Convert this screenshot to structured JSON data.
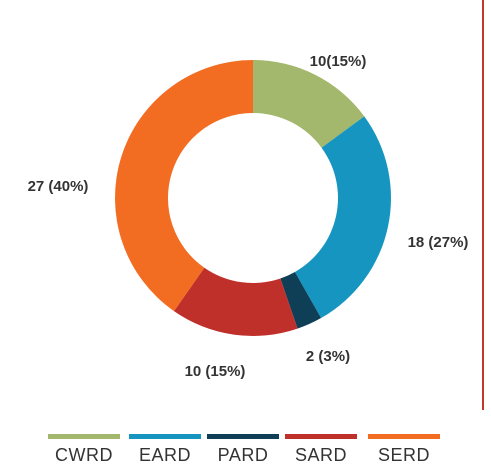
{
  "chart_data": {
    "type": "donut",
    "categories": [
      "CWRD",
      "EARD",
      "PARD",
      "SARD",
      "SERD"
    ],
    "values": [
      10,
      18,
      2,
      10,
      27
    ],
    "value_labels": [
      "10(15%)",
      "18 (27%)",
      "2 (3%)",
      "10 (15%)",
      "27 (40%)"
    ],
    "colors": [
      "#a3b86c",
      "#1595c0",
      "#0f3e57",
      "#c0302a",
      "#f26d21"
    ],
    "legend": "bottom"
  }
}
